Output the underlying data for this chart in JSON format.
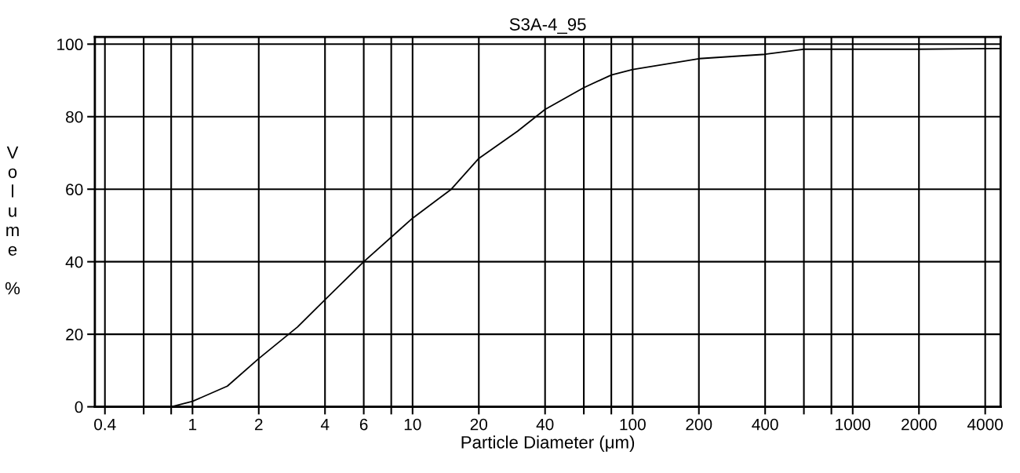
{
  "chart_data": {
    "type": "line",
    "title": "S3A-4_95",
    "xlabel": "Particle Diameter (μm)",
    "ylabel": "Volume %",
    "log": "x",
    "grid": true,
    "marker": "none",
    "line_style": "solid",
    "xlim": [
      0.36,
      4700
    ],
    "ylim": [
      0,
      102
    ],
    "xticks": [
      0.4,
      {
        "value": 0.6,
        "label": null
      },
      {
        "value": 0.8,
        "label": null
      },
      1,
      2,
      4,
      6,
      {
        "value": 8,
        "label": null
      },
      10,
      20,
      40,
      {
        "value": 60,
        "label": null
      },
      {
        "value": 80,
        "label": null
      },
      100,
      200,
      400,
      {
        "value": 600,
        "label": null
      },
      {
        "value": 800,
        "label": null
      },
      1000,
      2000,
      4000
    ],
    "yticks": [
      0,
      20,
      40,
      60,
      80,
      100
    ],
    "x": [
      0.36,
      0.8,
      1,
      1.44,
      2,
      3,
      4,
      6,
      10,
      15,
      20,
      30,
      40,
      60,
      80,
      100,
      200,
      400,
      600,
      1000,
      2000,
      4700
    ],
    "series": [
      {
        "color": "#000000",
        "values": [
          0,
          0,
          1.5,
          5.7,
          13.3,
          22,
          29.5,
          40,
          52,
          60,
          68.5,
          76,
          82,
          88,
          91.5,
          93,
          96,
          97.2,
          98.6,
          98.6,
          98.6,
          98.8
        ]
      }
    ]
  }
}
